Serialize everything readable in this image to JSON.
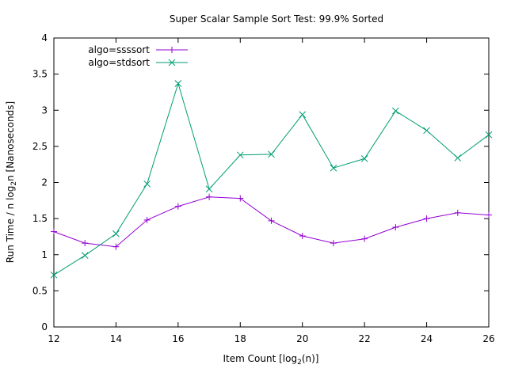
{
  "chart_data": {
    "type": "line",
    "title": "Super Scalar Sample Sort Test: 99.9% Sorted",
    "xlabel": {
      "main": "Item Count [log",
      "sub": "2",
      "tail": "(n)]"
    },
    "ylabel": {
      "main": "Run Time / n log",
      "sub": "2",
      "tail": "n [Nanoseconds]"
    },
    "xlim": [
      12,
      26
    ],
    "ylim": [
      0,
      4
    ],
    "xticks": [
      12,
      14,
      16,
      18,
      20,
      22,
      24,
      26
    ],
    "yticks": [
      0,
      0.5,
      1,
      1.5,
      2,
      2.5,
      3,
      3.5,
      4
    ],
    "ytick_labels": [
      "0",
      "0.5",
      "1",
      "1.5",
      "2",
      "2.5",
      "3",
      "3.5",
      "4"
    ],
    "grid": false,
    "legend_position": "top-left",
    "x": [
      12,
      13,
      14,
      15,
      16,
      17,
      18,
      19,
      20,
      21,
      22,
      23,
      24,
      25,
      26
    ],
    "series": [
      {
        "name": "algo=ssssort",
        "color": "#9400d3",
        "marker": "plus",
        "values": [
          1.32,
          1.16,
          1.11,
          1.48,
          1.67,
          1.8,
          1.78,
          1.47,
          1.26,
          1.16,
          1.22,
          1.38,
          1.5,
          1.58,
          1.55
        ]
      },
      {
        "name": "algo=stdsort",
        "color": "#009e73",
        "marker": "cross",
        "values": [
          0.72,
          0.99,
          1.29,
          1.98,
          3.37,
          1.91,
          2.38,
          2.39,
          2.94,
          2.2,
          2.33,
          2.99,
          2.72,
          2.34,
          2.66
        ]
      }
    ]
  }
}
